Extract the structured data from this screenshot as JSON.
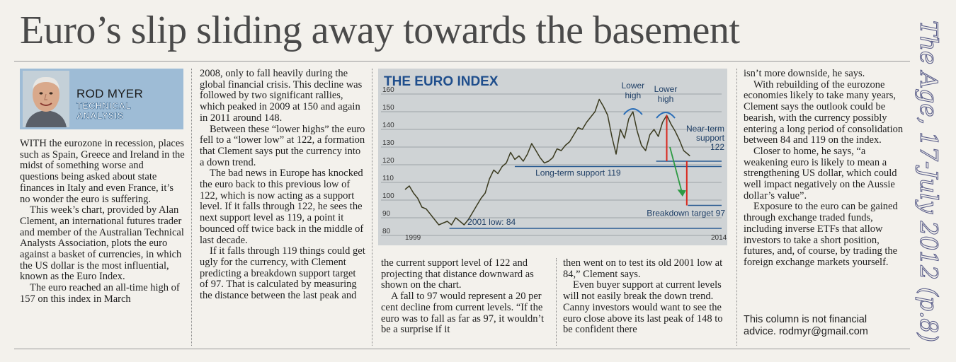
{
  "article": {
    "headline": "Euro’s slip sliding away towards the basement",
    "byline": {
      "name": "ROD MYER",
      "section_line1": "TECHNICAL",
      "section_line2": "ANALYSIS"
    },
    "col1": [
      {
        "lead": "WITH",
        "text": " the eurozone in recession, places such as Spain, Greece and Ireland in the midst of something worse and questions being asked about state finances in Italy and even France, it’s no wonder the euro is suffering."
      },
      {
        "text": "This week’s chart, provided by Alan Clement, an international futures trader and member of the Australian Technical Analysts Association, plots the euro against a basket of currencies, in which the US dollar is the most influential, known as the Euro Index."
      },
      {
        "text": "The euro reached an all-time high of 157 on this index in March"
      }
    ],
    "col2": [
      "2008, only to fall heavily during the global financial crisis. This decline was followed by two significant rallies, which peaked in 2009 at 150 and again in 2011 around 148.",
      "Between these “lower highs” the euro fell to a “lower low” at 122, a formation that Clement says put the currency into a down trend.",
      "The bad news in Europe has knocked the euro back to this previous low of 122, which is now acting as a support level. If it falls through 122, he sees the next support level as 119, a point it bounced off twice back in the middle of last decade.",
      "If it falls through 119 things could get ugly for the currency, with Clement predicting a breakdown support target of 97. That is calculated by measuring the distance between the last peak and"
    ],
    "col3": [
      "the current support level of 122 and projecting that distance downward as shown on the chart.",
      "A fall to 97 would represent a 20 per cent decline from current levels. “If the euro was to fall as far as 97, it wouldn’t be a surprise if it"
    ],
    "col4": [
      "then went on to test its old 2001 low at 84,” Clement says.",
      "Even buyer support at current levels will not easily break the down trend. Canny investors would want to see the euro close above its last peak of 148 to be confident there"
    ],
    "col5": [
      "isn’t more downside, he says.",
      "With rebuilding of the eurozone economies likely to take many years, Clement says the outlook could be bearish, with the currency possibly entering a long period of consolidation between 84 and 119 on the index.",
      "Closer to home, he says, “a weakening euro is likely to mean a strengthening US dollar, which could well impact negatively on the Aussie dollar’s value”.",
      "Exposure to the euro can be gained through exchange traded funds, including inverse ETFs that allow investors to take a short position, futures, and, of course, by trading the foreign exchange markets yourself."
    ],
    "disclaimer_line1": "This column is not financial",
    "disclaimer_line2": "advice. rodmyr@gmail.com",
    "handwritten_note": "The Age, 17-July 2012 (p.8)"
  },
  "chart_data": {
    "type": "line",
    "title": "THE EURO INDEX",
    "x_start_label": "1999",
    "x_end_label": "2014",
    "y_ticks": [
      160,
      150,
      140,
      130,
      120,
      110,
      100,
      90,
      80
    ],
    "ylim": [
      80,
      160
    ],
    "xlim": [
      1999,
      2014
    ],
    "series": [
      {
        "x": [
          1999.0,
          1999.2,
          1999.4,
          1999.6,
          1999.8,
          2000.0,
          2000.2,
          2000.4,
          2000.6,
          2000.8,
          2001.0,
          2001.2,
          2001.4,
          2001.6,
          2001.8,
          2002.0,
          2002.2,
          2002.4,
          2002.6,
          2002.8,
          2003.0,
          2003.2,
          2003.4,
          2003.6,
          2003.8,
          2004.0,
          2004.2,
          2004.4,
          2004.6,
          2004.8,
          2005.0,
          2005.2,
          2005.4,
          2005.6,
          2005.8,
          2006.0,
          2006.2,
          2006.4,
          2006.6,
          2006.8,
          2007.0,
          2007.2,
          2007.4,
          2007.6,
          2007.8,
          2008.0,
          2008.2,
          2008.4,
          2008.6,
          2008.8,
          2009.0,
          2009.2,
          2009.4,
          2009.6,
          2009.8,
          2010.0,
          2010.2,
          2010.4,
          2010.6,
          2010.8,
          2011.0,
          2011.2,
          2011.4,
          2011.6,
          2011.8,
          2012.0,
          2012.2,
          2012.5
        ],
        "y": [
          106,
          108,
          104,
          101,
          96,
          95,
          92,
          89,
          86,
          87,
          88,
          86,
          90,
          88,
          86,
          89,
          93,
          97,
          101,
          104,
          112,
          117,
          115,
          119,
          121,
          127,
          123,
          125,
          122,
          126,
          132,
          128,
          124,
          121,
          122,
          124,
          129,
          128,
          131,
          133,
          137,
          141,
          140,
          144,
          147,
          150,
          157,
          153,
          148,
          136,
          126,
          140,
          135,
          146,
          150,
          139,
          131,
          128,
          137,
          140,
          136,
          144,
          148,
          143,
          139,
          134,
          128,
          125
        ]
      }
    ],
    "annotations": {
      "lower_high_1": "Lower high",
      "lower_high_2": "Lower high",
      "near_term_support_line1": "Near-term",
      "near_term_support_line2": "support",
      "near_term_support_value": "122",
      "long_term_support": "Long-term support 119",
      "breakdown_target": "Breakdown target 97",
      "low_2001": "2001 low: 84"
    },
    "levels": {
      "near_term": 122,
      "long_term": 119,
      "breakdown": 97,
      "low_2001": 84
    },
    "colors": {
      "background": "#cfd3d5",
      "title": "#1f4e8c",
      "price_line": "#3b3b20",
      "support": "#2c5d93",
      "target_red": "#d9261c",
      "arrow_green": "#2e9a44",
      "arc_blue": "#2c6fb8"
    }
  }
}
